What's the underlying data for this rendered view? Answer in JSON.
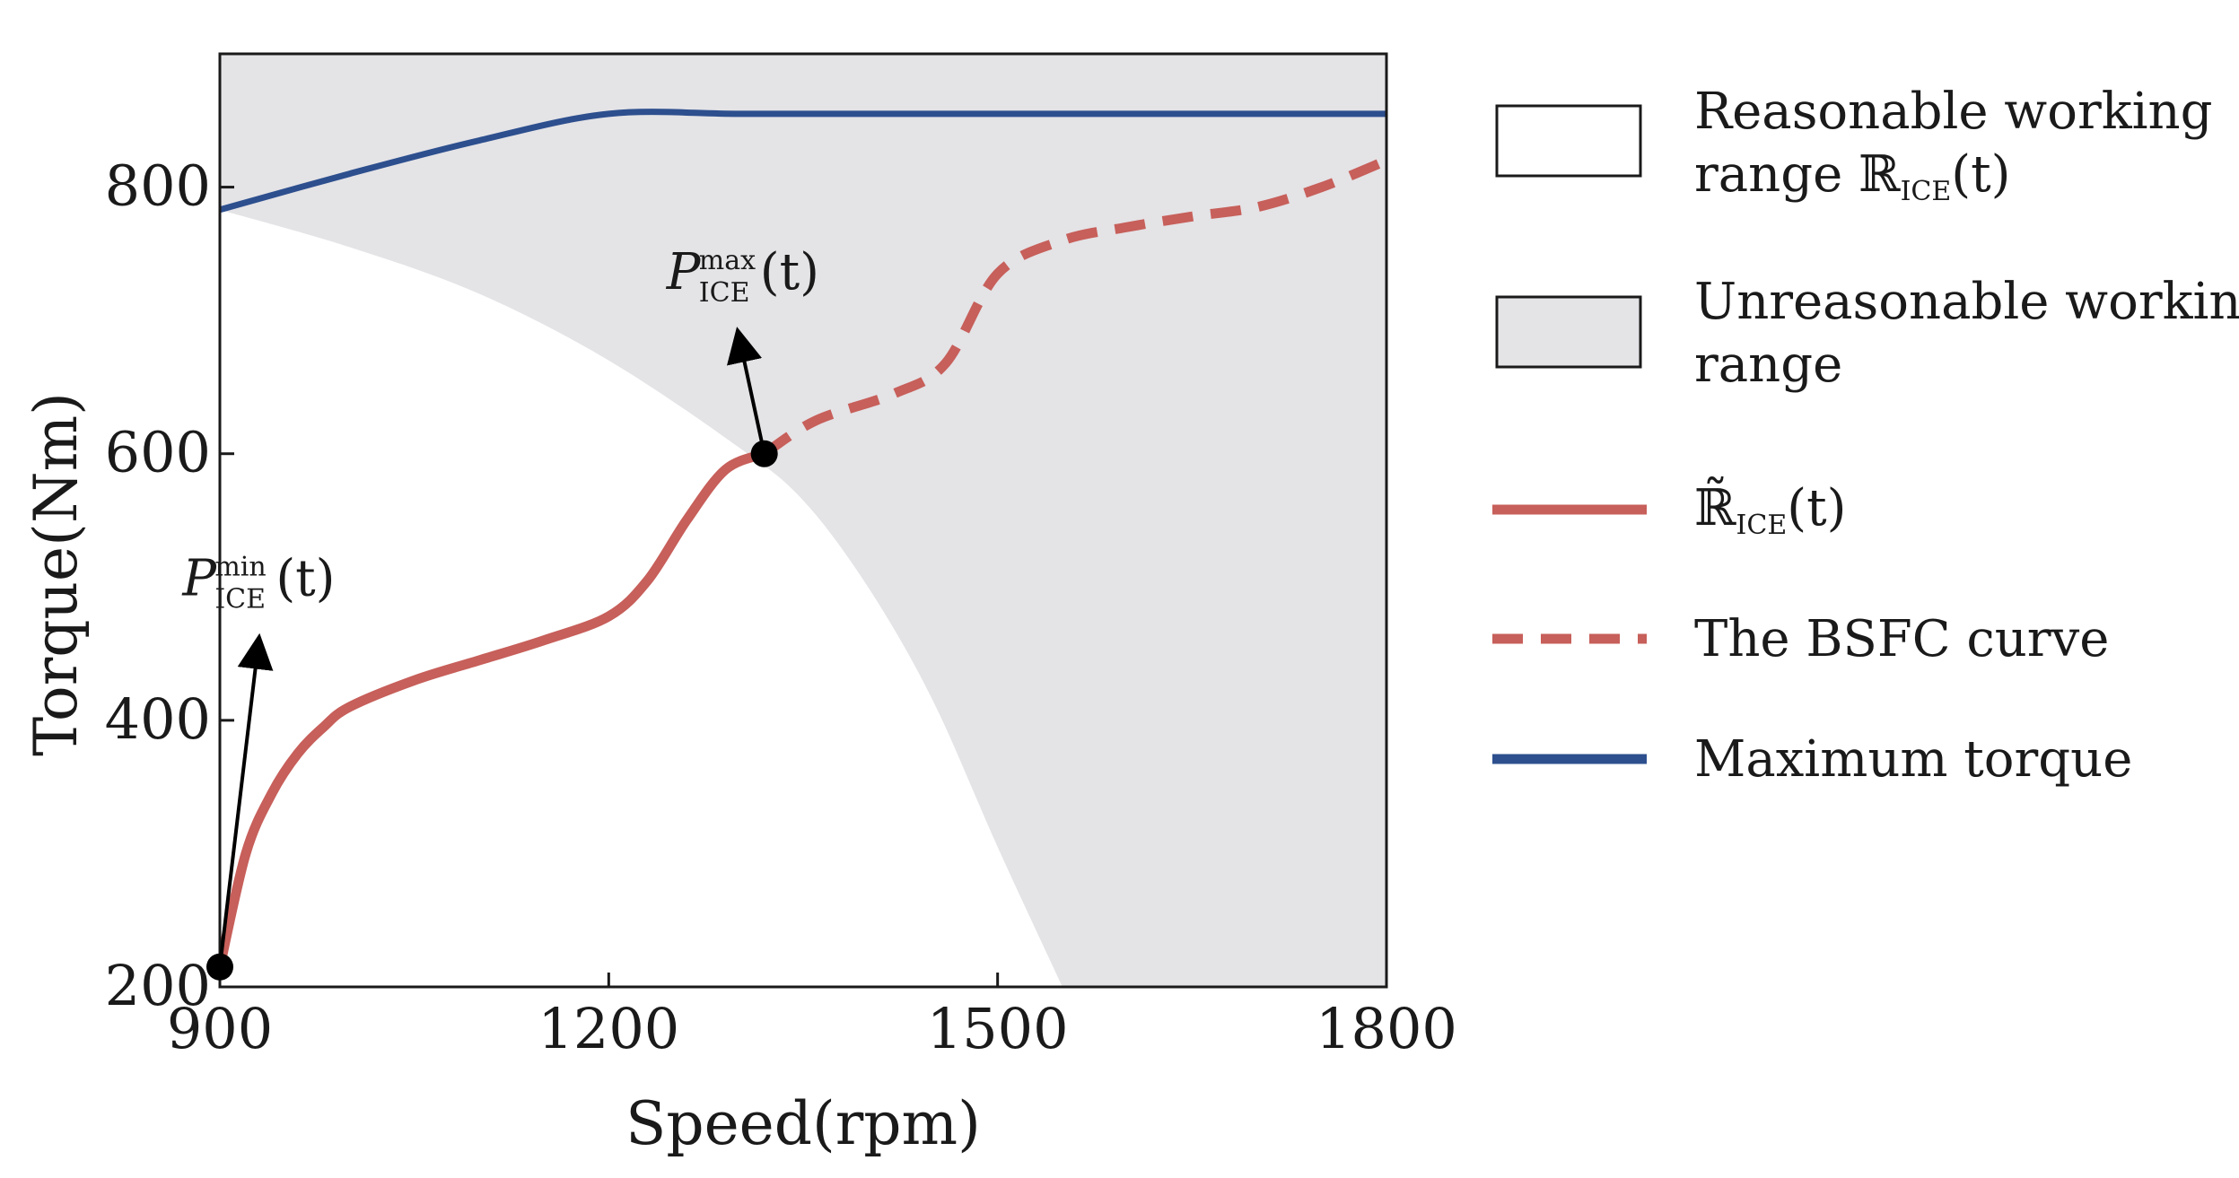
{
  "chart_data": {
    "type": "line",
    "title": "",
    "xlabel": "Speed(rpm)",
    "ylabel": "Torque(Nm)",
    "xlim": [
      900,
      1800
    ],
    "ylim": [
      200,
      900
    ],
    "x_ticks": [
      900,
      1200,
      1500,
      1800
    ],
    "y_ticks": [
      200,
      400,
      600,
      800
    ],
    "grid": false,
    "legend_position": "right",
    "colors": {
      "unreasonable_fill": "#e4e3e6",
      "reasonable_fill": "#ffffff",
      "feasible_line": "#c75f5a",
      "bsfc_line": "#c75f5a",
      "max_torque_line": "#2d4f8e",
      "marker": "#000000"
    },
    "legend": [
      {
        "key": "reasonable",
        "lines": [
          "Reasonable working",
          "range ℝ",
          "ICE",
          "(t)"
        ]
      },
      {
        "key": "unreasonable",
        "lines": [
          "Unreasonable working",
          "range"
        ]
      },
      {
        "key": "feasible",
        "label_main": "ℝ̃",
        "label_sub": "ICE",
        "label_tail": "(t)"
      },
      {
        "key": "bsfc",
        "label": "The BSFC curve"
      },
      {
        "key": "max_torque",
        "label": "Maximum torque"
      }
    ],
    "series": [
      {
        "key": "max_torque",
        "x": [
          900,
          1000,
          1100,
          1200,
          1300,
          1400,
          1500,
          1600,
          1700,
          1800
        ],
        "y": [
          783,
          810,
          835,
          855,
          855,
          855,
          855,
          855,
          855,
          855
        ]
      },
      {
        "key": "feasible",
        "x": [
          900,
          920,
          940,
          960,
          980,
          1000,
          1050,
          1100,
          1150,
          1200,
          1230,
          1260,
          1290,
          1320
        ],
        "y": [
          215,
          300,
          345,
          375,
          395,
          410,
          430,
          445,
          460,
          478,
          505,
          550,
          588,
          600
        ]
      },
      {
        "key": "bsfc",
        "x": [
          1320,
          1360,
          1420,
          1460,
          1500,
          1550,
          1600,
          1650,
          1700,
          1750,
          1800
        ],
        "y": [
          600,
          625,
          645,
          668,
          735,
          760,
          770,
          778,
          785,
          800,
          820
        ]
      }
    ],
    "reasonable_boundary": {
      "x": [
        900,
        1000,
        1100,
        1200,
        1300,
        1350,
        1400,
        1450,
        1500,
        1550
      ],
      "y": [
        783,
        755,
        720,
        670,
        605,
        565,
        500,
        415,
        305,
        200
      ]
    },
    "points": [
      {
        "key": "p_min",
        "x": 900,
        "y": 215
      },
      {
        "key": "p_max",
        "x": 1320,
        "y": 600
      }
    ],
    "annotations": [
      {
        "key": "p_min_label",
        "main": "P",
        "sup": "min",
        "sub": "ICE",
        "tail": "(t)",
        "target_x": 930,
        "target_y": 460
      },
      {
        "key": "p_max_label",
        "main": "P",
        "sup": "max",
        "sub": "ICE",
        "tail": "(t)",
        "target_x": 1300,
        "target_y": 690
      }
    ]
  }
}
